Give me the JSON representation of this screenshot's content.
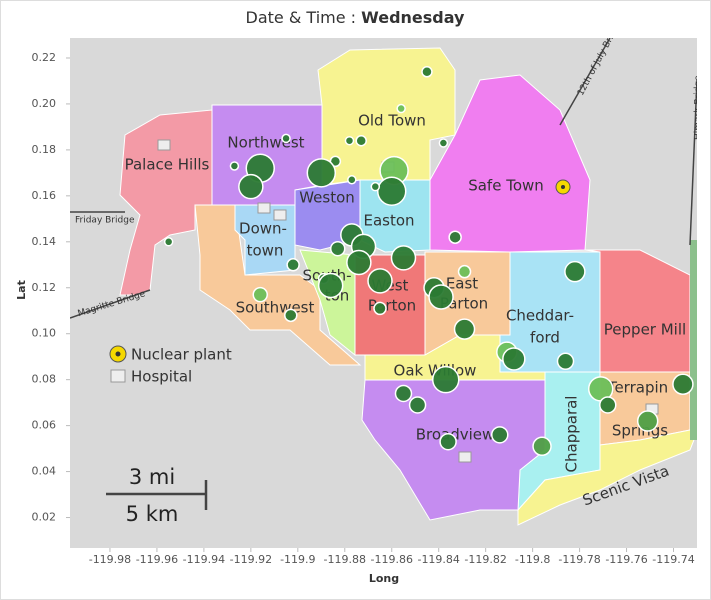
{
  "chart_data": {
    "type": "scatter",
    "title_label": "Date & Time :",
    "title_value": "Wednesday",
    "x_label": "Long",
    "y_label": "Lat",
    "xlim": [
      -120.0,
      -119.73
    ],
    "ylim": [
      0.005,
      0.23
    ],
    "xticks": [
      -119.98,
      -119.96,
      -119.94,
      -119.92,
      -119.9,
      -119.88,
      -119.86,
      -119.84,
      -119.82,
      -119.8,
      -119.78,
      -119.76,
      -119.74
    ],
    "yticks": [
      0.02,
      0.04,
      0.06,
      0.08,
      {
        "value": 0.1,
        "label": "0.10"
      },
      0.12,
      0.14,
      0.16,
      0.18,
      {
        "value": 0.2,
        "label": "0.20"
      },
      0.22
    ],
    "x": [
      -119.845,
      -119.856,
      -119.878,
      -119.873,
      -119.838,
      -119.905,
      -119.916,
      -119.927,
      -119.884,
      -119.89,
      -119.877,
      -119.859,
      -119.86,
      -119.867,
      -119.92,
      -119.955,
      -119.877,
      -119.872,
      -119.883,
      -119.833,
      -119.855,
      -119.874,
      -119.902,
      -119.889,
      -119.886,
      -119.865,
      -119.829,
      -119.782,
      -119.842,
      -119.839,
      -119.916,
      -119.903,
      -119.865,
      -119.829,
      -119.811,
      -119.808,
      -119.786,
      -119.837,
      -119.771,
      -119.736,
      -119.855,
      -119.849,
      -119.768,
      -119.751,
      -119.814,
      -119.836,
      -119.796
    ],
    "values": [
      0.214,
      0.198,
      0.184,
      0.184,
      0.183,
      0.185,
      0.172,
      0.173,
      0.175,
      0.17,
      0.167,
      0.171,
      0.162,
      0.164,
      0.164,
      0.14,
      0.143,
      0.138,
      0.137,
      0.142,
      0.133,
      0.131,
      0.13,
      0.124,
      0.121,
      0.123,
      0.127,
      0.127,
      0.12,
      0.116,
      0.117,
      0.108,
      0.111,
      0.102,
      0.092,
      0.089,
      0.088,
      0.08,
      0.076,
      0.078,
      0.074,
      0.069,
      0.069,
      0.062,
      0.056,
      0.053,
      0.051
    ],
    "sizes": [
      5,
      4,
      4,
      5,
      4,
      4,
      14,
      4,
      5,
      14,
      4,
      14,
      14,
      4,
      12,
      4,
      11,
      12,
      7,
      6,
      12,
      12,
      6,
      5,
      12,
      12,
      6,
      10,
      10,
      12,
      7,
      6,
      6,
      10,
      10,
      11,
      8,
      13,
      12,
      10,
      8,
      8,
      8,
      10,
      8,
      8,
      9
    ],
    "point_colors": [
      "#2b7a33",
      "#6bbf59",
      "#2b7a33",
      "#2b7a33",
      "#2b7a33",
      "#2b7a33",
      "#2b7a33",
      "#2b7a33",
      "#2b7a33",
      "#2b7a33",
      "#2b7a33",
      "#6bbf59",
      "#2b7a33",
      "#2b7a33",
      "#2b7a33",
      "#2b7a33",
      "#2b7a33",
      "#2b7a33",
      "#2b7a33",
      "#2b7a33",
      "#2b7a33",
      "#2b7a33",
      "#2b7a33",
      "#2b7a33",
      "#2b7a33",
      "#2b7a33",
      "#6bbf59",
      "#2b7a33",
      "#2b7a33",
      "#2b7a33",
      "#6bbf59",
      "#2b7a33",
      "#2b7a33",
      "#2b7a33",
      "#6bbf59",
      "#2b7a33",
      "#2b7a33",
      "#2b7a33",
      "#6bbf59",
      "#2b7a33",
      "#2b7a33",
      "#2b7a33",
      "#2b7a33",
      "#4f9f45",
      "#2b7a33",
      "#2b7a33",
      "#4f9f45"
    ],
    "region_labels": [
      "Palace Hills",
      "Northwest",
      "Old Town",
      "Weston",
      "Easton",
      "Safe Town",
      "Down-",
      "town",
      "South-",
      "ton",
      "West",
      "Parton",
      "East",
      "Parton",
      "Southwest",
      "Cheddar-",
      "ford",
      "Pepper Mill",
      "Oak Willow",
      "Terrapin",
      "Springs",
      "Chapparal",
      "Broadview",
      "Scenic Vista"
    ],
    "road_labels": [
      "Friday Bridge",
      "Magritte Bridge",
      "12th of July Bridge",
      "Himark Bridge"
    ],
    "legend": [
      "Nuclear plant",
      "Hospital"
    ],
    "scale_bar": [
      "3 mi",
      "5 km"
    ]
  }
}
